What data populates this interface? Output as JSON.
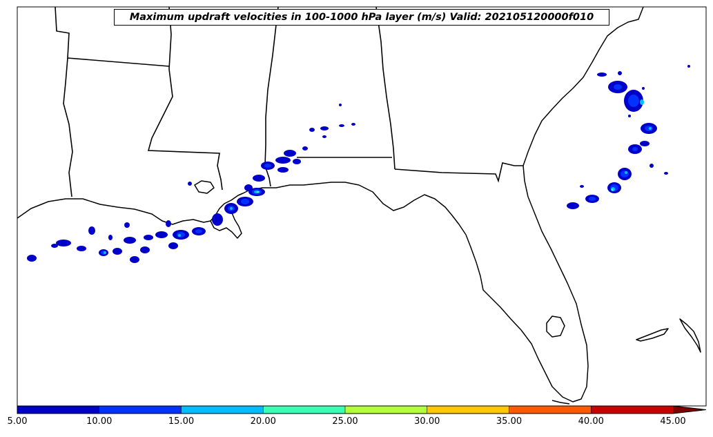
{
  "map": {
    "title": "Maximum updraft velocities in 100-1000 hPa layer (m/s) Valid: 202105120000f010",
    "region": "US Gulf Coast and Southeast",
    "variable": "max updraft velocity",
    "units": "m/s"
  },
  "colorbar": {
    "ticks": [
      "5.00",
      "10.00",
      "15.00",
      "20.00",
      "25.00",
      "30.00",
      "35.00",
      "40.00",
      "45.00"
    ],
    "colors": [
      "#0000c8",
      "#0032ff",
      "#00beff",
      "#3cffb4",
      "#b4ff3c",
      "#ffc800",
      "#ff5a00",
      "#c80000"
    ],
    "extend": "max",
    "extend_color": "#800000"
  }
}
